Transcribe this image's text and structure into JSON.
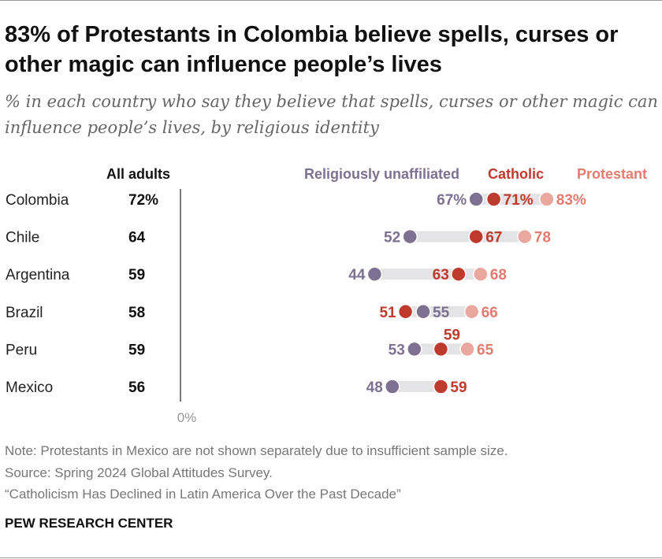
{
  "title": "83% of Protestants in Colombia believe spells, curses or other magic can influence people’s lives",
  "subtitle": "% in each country who say they believe that spells, curses or other magic can influence people’s lives, by religious identity",
  "notes": [
    "Note: Protestants in Mexico are not shown separately due to insufficient sample size.",
    "Source: Spring 2024 Global Attitudes Survey.",
    "“Catholicism Has Declined in Latin America Over the Past Decade”"
  ],
  "brand": "PEW RESEARCH CENTER",
  "chart_data": {
    "type": "dot",
    "all_adults_header": "All adults",
    "zero_label": "0%",
    "categories": [
      "Colombia",
      "Chile",
      "Argentina",
      "Brazil",
      "Peru",
      "Mexico"
    ],
    "all_adults": [
      72,
      64,
      59,
      58,
      59,
      56
    ],
    "all_adults_labels": [
      "72%",
      "64",
      "59",
      "58",
      "59",
      "56"
    ],
    "series": [
      {
        "name": "Religiously unaffiliated",
        "color": "#7d7090",
        "label_color": "#7d7090",
        "values": [
          67,
          52,
          44,
          55,
          53,
          48
        ]
      },
      {
        "name": "Catholic",
        "color": "#be3a2c",
        "label_color": "#be3a2c",
        "values": [
          71,
          67,
          63,
          51,
          59,
          59
        ]
      },
      {
        "name": "Protestant",
        "color": "#eaa79e",
        "label_color": "#e27c6f",
        "values": [
          83,
          78,
          68,
          66,
          65,
          null
        ]
      }
    ],
    "value_labels": [
      [
        "67%",
        "71%",
        "83%"
      ],
      [
        "52",
        "67",
        "78"
      ],
      [
        "44",
        "63",
        "68"
      ],
      [
        "55",
        "51",
        "66"
      ],
      [
        "53",
        "59",
        "65"
      ],
      [
        "48",
        "59",
        ""
      ]
    ],
    "xlim": [
      0,
      100
    ],
    "legend": "top"
  }
}
